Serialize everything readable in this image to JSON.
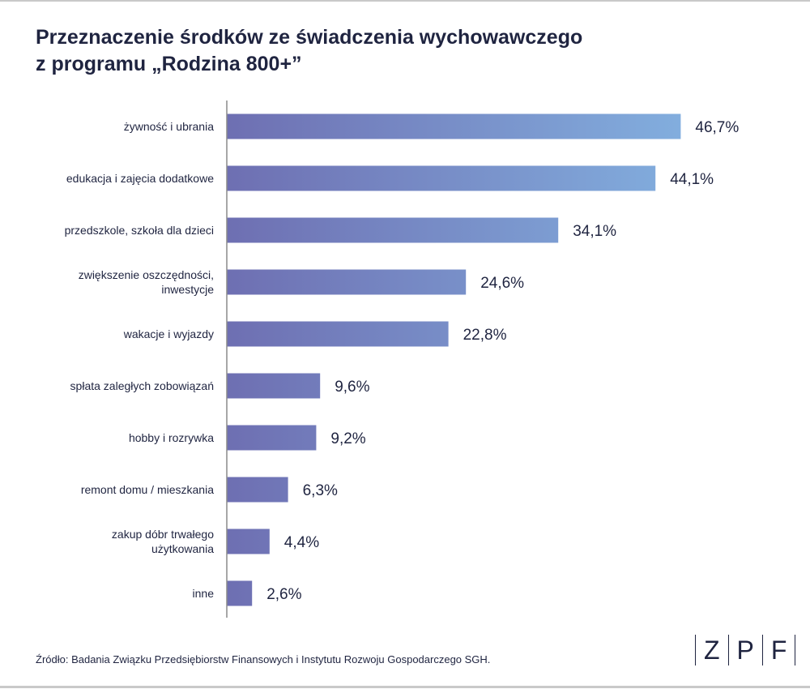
{
  "title": {
    "line1": "Przeznaczenie środków ze świadczenia wychowawczego",
    "line2": "z programu „Rodzina 800+”"
  },
  "source": "Źródło: Badania Związku Przedsiębiorstw Finansowych i Instytutu Rozwoju Gospodarczego SGH.",
  "logo": {
    "letters": [
      "Z",
      "P",
      "F"
    ]
  },
  "colors": {
    "bar_start": "#6e6fb2",
    "bar_end": "#82aede",
    "text": "#1f2440",
    "axis": "#8a8a8a"
  },
  "chart_data": {
    "type": "bar",
    "orientation": "horizontal",
    "categories": [
      "żywność i ubrania",
      "edukacja i zajęcia dodatkowe",
      "przedszkole, szkoła dla dzieci",
      "zwiększenie oszczędności, inwestycje",
      "wakacje i wyjazdy",
      "spłata zaległych zobowiązań",
      "hobby i rozrywka",
      "remont domu / mieszkania",
      "zakup dóbr trwałego użytkowania",
      "inne"
    ],
    "category_lines": [
      [
        "żywność i ubrania"
      ],
      [
        "edukacja i zajęcia dodatkowe"
      ],
      [
        "przedszkole, szkoła dla dzieci"
      ],
      [
        "zwiększenie oszczędności,",
        "inwestycje"
      ],
      [
        "wakacje i wyjazdy"
      ],
      [
        "spłata zaległych zobowiązań"
      ],
      [
        "hobby i rozrywka"
      ],
      [
        "remont domu / mieszkania"
      ],
      [
        "zakup dóbr trwałego",
        "użytkowania"
      ],
      [
        "inne"
      ]
    ],
    "values": [
      46.7,
      44.1,
      34.1,
      24.6,
      22.8,
      9.6,
      9.2,
      6.3,
      4.4,
      2.6
    ],
    "value_labels": [
      "46,7%",
      "44,1%",
      "34,1%",
      "24,6%",
      "22,8%",
      "9,6%",
      "9,2%",
      "6,3%",
      "4,4%",
      "2,6%"
    ],
    "xlim": [
      0,
      50
    ],
    "grid": false,
    "legend": "none"
  }
}
